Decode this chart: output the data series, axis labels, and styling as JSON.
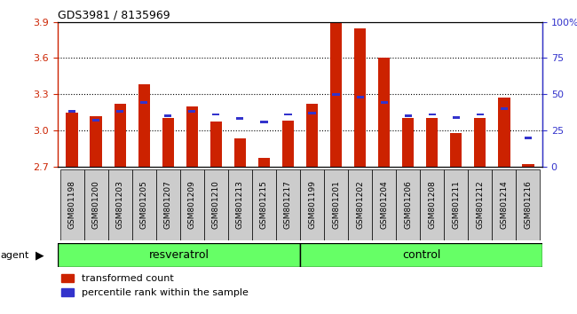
{
  "title": "GDS3981 / 8135969",
  "categories": [
    "GSM801198",
    "GSM801200",
    "GSM801203",
    "GSM801205",
    "GSM801207",
    "GSM801209",
    "GSM801210",
    "GSM801213",
    "GSM801215",
    "GSM801217",
    "GSM801199",
    "GSM801201",
    "GSM801202",
    "GSM801204",
    "GSM801206",
    "GSM801208",
    "GSM801211",
    "GSM801212",
    "GSM801214",
    "GSM801216"
  ],
  "red_values": [
    3.15,
    3.12,
    3.22,
    3.38,
    3.1,
    3.2,
    3.07,
    2.93,
    2.77,
    3.08,
    3.22,
    3.9,
    3.85,
    3.6,
    3.1,
    3.1,
    2.98,
    3.1,
    3.27,
    2.72
  ],
  "blue_values": [
    38,
    32,
    38,
    44,
    35,
    38,
    36,
    33,
    31,
    36,
    37,
    50,
    48,
    44,
    35,
    36,
    34,
    36,
    40,
    20
  ],
  "ylim": [
    2.7,
    3.9
  ],
  "y2lim": [
    0,
    100
  ],
  "yticks": [
    2.7,
    3.0,
    3.3,
    3.6,
    3.9
  ],
  "y2ticks": [
    0,
    25,
    50,
    75,
    100
  ],
  "bar_bottom": 2.7,
  "red_color": "#CC2200",
  "blue_color": "#3333CC",
  "resveratrol_count": 10,
  "control_count": 10,
  "group_labels": [
    "resveratrol",
    "control"
  ],
  "group_bg_color": "#66FF66",
  "xtick_bg_color": "#CCCCCC",
  "agent_label": "agent",
  "legend_red": "transformed count",
  "legend_blue": "percentile rank within the sample",
  "bar_width": 0.5,
  "blue_bar_width": 0.3,
  "blue_bar_height": 0.022
}
